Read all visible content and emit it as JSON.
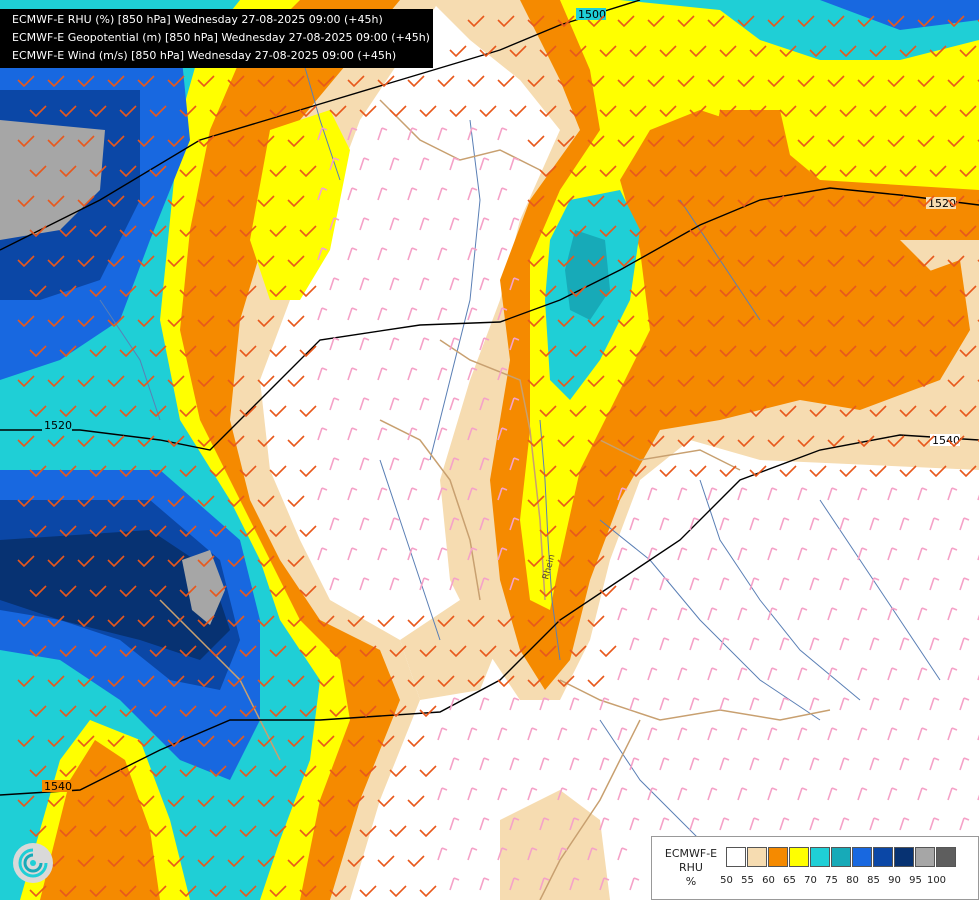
{
  "header": {
    "line1": "ECMWF-E RHU (%) [850 hPa] Wednesday 27-08-2025 09:00 (+45h)",
    "line2": "ECMWF-E Geopotential (m) [850 hPa] Wednesday 27-08-2025 09:00 (+45h)",
    "line3": "ECMWF-E Wind (m/s) [850 hPa] Wednesday 27-08-2025 09:00 (+45h)"
  },
  "contours": {
    "labels": [
      "1500",
      "1520",
      "1520",
      "1540",
      "1540"
    ]
  },
  "map_labels": {
    "river": "Rhein"
  },
  "legend": {
    "title1": "ECMWF-E",
    "title2": "RHU",
    "title3": "%",
    "classes": [
      {
        "label": "50",
        "color": "#ffffff"
      },
      {
        "label": "55",
        "color": "#f6dcb1"
      },
      {
        "label": "60",
        "color": "#f58a00"
      },
      {
        "label": "65",
        "color": "#ffff00"
      },
      {
        "label": "70",
        "color": "#1fcfd6"
      },
      {
        "label": "75",
        "color": "#17aab8"
      },
      {
        "label": "80",
        "color": "#1868e0"
      },
      {
        "label": "85",
        "color": "#0b47a6"
      },
      {
        "label": "90",
        "color": "#073272"
      },
      {
        "label": "95",
        "color": "#a6a6a6"
      },
      {
        "label": "100",
        "color": "#5e5e5e"
      }
    ]
  },
  "colors": {
    "wind_barb_moist": "#e8581c",
    "wind_barb_dry": "#f5a2c8",
    "contour": "#000000",
    "border": "#c8a070",
    "river": "#5a7fb5"
  }
}
